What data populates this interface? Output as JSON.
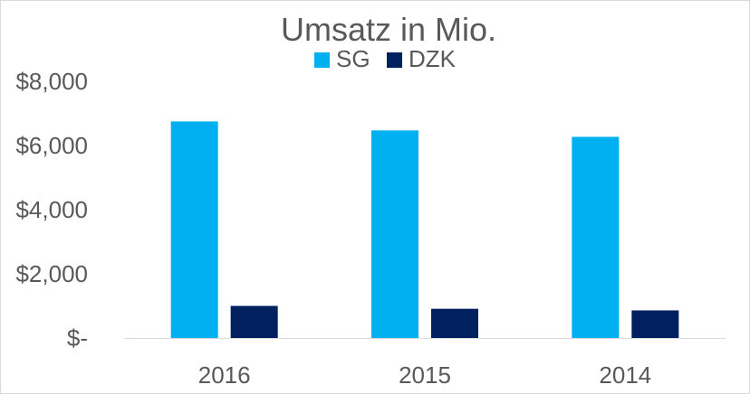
{
  "chart_data": {
    "type": "bar",
    "title": "Umsatz in Mio.",
    "categories": [
      "2016",
      "2015",
      "2014"
    ],
    "series": [
      {
        "name": "SG",
        "color": "#00b0f0",
        "values": [
          6750,
          6470,
          6270
        ]
      },
      {
        "name": "DZK",
        "color": "#002060",
        "values": [
          1000,
          910,
          860
        ]
      }
    ],
    "ylim": [
      0,
      8000
    ],
    "yticks": [
      {
        "value": 0,
        "label": "$-"
      },
      {
        "value": 2000,
        "label": "$2,000"
      },
      {
        "value": 4000,
        "label": "$4,000"
      },
      {
        "value": 6000,
        "label": "$6,000"
      },
      {
        "value": 8000,
        "label": "$8,000"
      }
    ],
    "legend_position": "top-center",
    "grid": false,
    "axis_line_color": "#d9d9d9"
  }
}
